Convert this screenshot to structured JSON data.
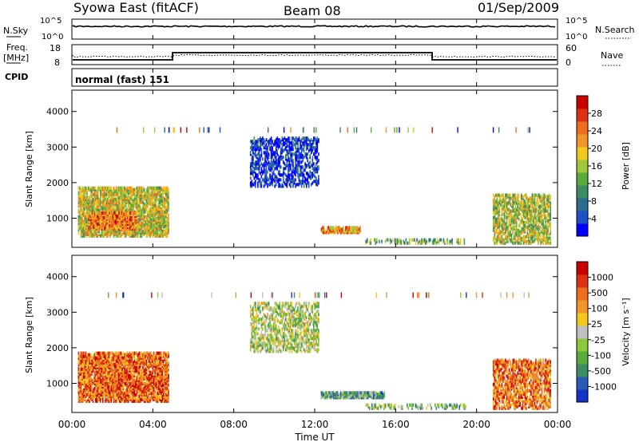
{
  "header": {
    "station": "Syowa East (fitACF)",
    "beam": "Beam 08",
    "date": "01/Sep/2009"
  },
  "status_panels": {
    "nsky": {
      "label": "N.Sky",
      "ticks": [
        "10^5",
        "10^0"
      ]
    },
    "nsearch": {
      "label": "N.Search",
      "ticks": [
        "10^5",
        "10^0"
      ]
    },
    "freq": {
      "label_line1": "Freq.",
      "label_line2": "[MHz]",
      "ticks": [
        "18",
        "8"
      ]
    },
    "nave": {
      "label": "Nave",
      "ticks": [
        "60",
        "0"
      ]
    },
    "cpid": {
      "label": "CPID",
      "value": "normal (fast) 151"
    }
  },
  "colors": {
    "power_scale": [
      "#0000ff",
      "#1e50c8",
      "#2a6e8c",
      "#3c8c64",
      "#5aaa3c",
      "#a0c83c",
      "#f0c81e",
      "#f09628",
      "#f06e1e",
      "#dc3214",
      "#c80000"
    ],
    "velocity_scale": [
      "#1432c8",
      "#2a5ab4",
      "#3c8c64",
      "#5aaa3c",
      "#8cc83c",
      "#c0c0c0",
      "#f0c81e",
      "#f09628",
      "#f06e1e",
      "#dc3214",
      "#c80000"
    ]
  },
  "chart_data": [
    {
      "type": "heatmap",
      "name": "power-panel",
      "ylabel": "Slant Range [km]",
      "xlabel": "Time UT",
      "ylim": [
        180,
        4600
      ],
      "yticks": [
        "1000",
        "2000",
        "3000",
        "4000"
      ],
      "xticks": [
        "00:00",
        "04:00",
        "08:00",
        "12:00",
        "16:00",
        "20:00",
        "00:00"
      ],
      "colorbar": {
        "label": "Power [dB]",
        "ticks": [
          "28",
          "24",
          "20",
          "16",
          "12",
          "8",
          "4"
        ]
      },
      "regions": [
        {
          "t": [
            0.3,
            4.8
          ],
          "r": [
            500,
            1900
          ],
          "level": 0.55,
          "density": 0.75
        },
        {
          "t": [
            0.8,
            3.2
          ],
          "r": [
            700,
            1200
          ],
          "level": 0.75,
          "density": 0.8
        },
        {
          "t": [
            8.8,
            12.2
          ],
          "r": [
            1900,
            3300
          ],
          "level": 0.1,
          "density": 0.45
        },
        {
          "t": [
            12.3,
            14.3
          ],
          "r": [
            600,
            800
          ],
          "level": 0.7,
          "density": 0.8
        },
        {
          "t": [
            14.5,
            19.5
          ],
          "r": [
            300,
            450
          ],
          "level": 0.4,
          "density": 0.4
        },
        {
          "t": [
            20.8,
            23.7
          ],
          "r": [
            300,
            1700
          ],
          "level": 0.5,
          "density": 0.6
        }
      ]
    },
    {
      "type": "heatmap",
      "name": "velocity-panel",
      "ylabel": "Slant Range [km]",
      "xlabel": "Time UT",
      "ylim": [
        180,
        4600
      ],
      "yticks": [
        "1000",
        "2000",
        "3000",
        "4000"
      ],
      "xticks": [
        "00:00",
        "04:00",
        "08:00",
        "12:00",
        "16:00",
        "20:00",
        "00:00"
      ],
      "colorbar": {
        "label": "Velocity [m s⁻¹]",
        "ticks": [
          "1000",
          "500",
          "100",
          "25",
          "-25",
          "-100",
          "-500",
          "-1000"
        ]
      },
      "regions": [
        {
          "t": [
            0.3,
            4.8
          ],
          "r": [
            500,
            1900
          ],
          "level": 0.78,
          "density": 0.75
        },
        {
          "t": [
            8.8,
            12.2
          ],
          "r": [
            1900,
            3300
          ],
          "level": 0.45,
          "density": 0.45
        },
        {
          "t": [
            12.3,
            15.5
          ],
          "r": [
            600,
            800
          ],
          "level": 0.3,
          "density": 0.85
        },
        {
          "t": [
            14.5,
            19.5
          ],
          "r": [
            300,
            450
          ],
          "level": 0.35,
          "density": 0.4
        },
        {
          "t": [
            20.8,
            23.7
          ],
          "r": [
            300,
            1700
          ],
          "level": 0.75,
          "density": 0.6
        }
      ]
    }
  ]
}
